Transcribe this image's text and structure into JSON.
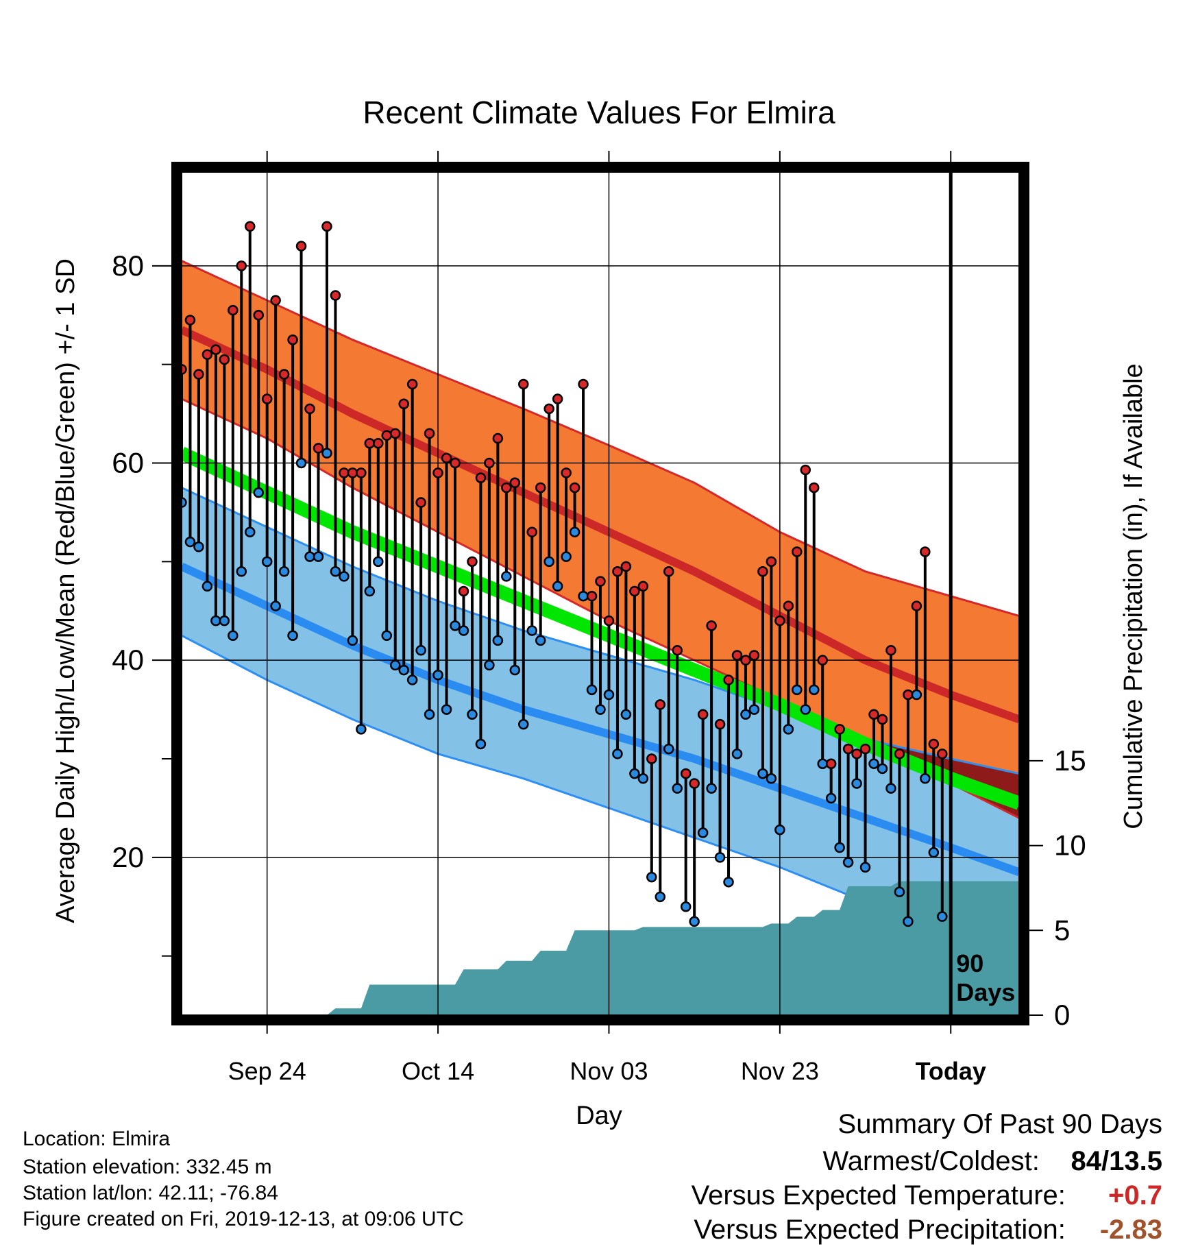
{
  "chart_data": {
    "type": "line",
    "title": "Recent Climate Values For Elmira",
    "xlabel": "Day",
    "ylabel_left": "Average Daily High/Low/Mean (Red/Blue/Green) +/- 1 SD",
    "ylabel_right": "Cumulative Precipitation (in), If Available",
    "x_range": [
      "2019-09-14",
      "2019-12-21"
    ],
    "x_ticks": [
      {
        "date": "2019-09-24",
        "label": "Sep 24"
      },
      {
        "date": "2019-10-14",
        "label": "Oct 14"
      },
      {
        "date": "2019-11-03",
        "label": "Nov 03"
      },
      {
        "date": "2019-11-23",
        "label": "Nov 23"
      },
      {
        "date": "2019-12-13",
        "label": "Today"
      }
    ],
    "y_left_range": [
      4,
      90
    ],
    "y_left_ticks": [
      20,
      40,
      60,
      80
    ],
    "y_right_range": [
      0,
      50
    ],
    "y_right_ticks": [
      0,
      5,
      10,
      15
    ],
    "grid": true,
    "today_marker": {
      "date": "2019-12-13",
      "label_line1": "90",
      "label_line2": "Days"
    },
    "normals": {
      "dates": [
        "2019-09-14",
        "2019-09-24",
        "2019-10-04",
        "2019-10-14",
        "2019-10-24",
        "2019-11-03",
        "2019-11-13",
        "2019-11-23",
        "2019-12-03",
        "2019-12-13",
        "2019-12-21"
      ],
      "high_plus_sd": [
        80.5,
        76.5,
        72.5,
        69.0,
        65.5,
        61.8,
        58.0,
        53.0,
        49.0,
        46.5,
        44.5
      ],
      "high_mean": [
        73.5,
        69.5,
        65.0,
        61.0,
        57.0,
        53.0,
        49.0,
        44.5,
        40.0,
        36.5,
        34.0
      ],
      "high_minus_sd": [
        66.5,
        62.5,
        57.5,
        53.0,
        48.5,
        44.0,
        40.0,
        36.0,
        31.5,
        27.5,
        24.0
      ],
      "mean": [
        61.0,
        57.0,
        53.0,
        49.5,
        46.0,
        42.5,
        39.0,
        35.5,
        31.5,
        28.0,
        25.5
      ],
      "low_plus_sd": [
        57.5,
        53.5,
        49.5,
        46.0,
        43.0,
        40.5,
        38.0,
        35.0,
        32.0,
        30.0,
        28.5
      ],
      "low_mean": [
        49.5,
        45.5,
        41.5,
        38.0,
        35.0,
        32.5,
        30.0,
        27.0,
        24.0,
        21.0,
        18.5
      ],
      "low_minus_sd": [
        42.5,
        38.0,
        34.0,
        30.5,
        28.0,
        25.0,
        22.0,
        19.0,
        15.5,
        12.0,
        9.0
      ]
    },
    "observed": {
      "dates": [
        "2019-09-14",
        "2019-09-15",
        "2019-09-16",
        "2019-09-17",
        "2019-09-18",
        "2019-09-19",
        "2019-09-20",
        "2019-09-21",
        "2019-09-22",
        "2019-09-23",
        "2019-09-24",
        "2019-09-25",
        "2019-09-26",
        "2019-09-27",
        "2019-09-28",
        "2019-09-29",
        "2019-09-30",
        "2019-10-01",
        "2019-10-02",
        "2019-10-03",
        "2019-10-04",
        "2019-10-05",
        "2019-10-06",
        "2019-10-07",
        "2019-10-08",
        "2019-10-09",
        "2019-10-10",
        "2019-10-11",
        "2019-10-12",
        "2019-10-13",
        "2019-10-14",
        "2019-10-15",
        "2019-10-16",
        "2019-10-17",
        "2019-10-18",
        "2019-10-19",
        "2019-10-20",
        "2019-10-21",
        "2019-10-22",
        "2019-10-23",
        "2019-10-24",
        "2019-10-25",
        "2019-10-26",
        "2019-10-27",
        "2019-10-28",
        "2019-10-29",
        "2019-10-30",
        "2019-10-31",
        "2019-11-01",
        "2019-11-02",
        "2019-11-03",
        "2019-11-04",
        "2019-11-05",
        "2019-11-06",
        "2019-11-07",
        "2019-11-08",
        "2019-11-09",
        "2019-11-10",
        "2019-11-11",
        "2019-11-12",
        "2019-11-13",
        "2019-11-14",
        "2019-11-15",
        "2019-11-16",
        "2019-11-17",
        "2019-11-18",
        "2019-11-19",
        "2019-11-20",
        "2019-11-21",
        "2019-11-22",
        "2019-11-23",
        "2019-11-24",
        "2019-11-25",
        "2019-11-26",
        "2019-11-27",
        "2019-11-28",
        "2019-11-29",
        "2019-11-30",
        "2019-12-01",
        "2019-12-02",
        "2019-12-03",
        "2019-12-04",
        "2019-12-05",
        "2019-12-06",
        "2019-12-07",
        "2019-12-08",
        "2019-12-09",
        "2019-12-10",
        "2019-12-11",
        "2019-12-12"
      ],
      "high": [
        69.5,
        74.5,
        69,
        71,
        71.5,
        70.5,
        75.5,
        80,
        84,
        75,
        66.5,
        76.5,
        69,
        72.5,
        82,
        65.5,
        61.5,
        84,
        77,
        59,
        59,
        59,
        62,
        62,
        62.8,
        63,
        66,
        68,
        56,
        63,
        59,
        60.5,
        60,
        47,
        50,
        58.5,
        60,
        62.5,
        57.5,
        58,
        68,
        53,
        57.5,
        65.5,
        66.5,
        59,
        57.5,
        68,
        46.5,
        48,
        44,
        49,
        49.5,
        47,
        47.5,
        30,
        35.5,
        49,
        41,
        28.5,
        27.5,
        34.5,
        43.5,
        33.5,
        38,
        40.5,
        40,
        40.5,
        49,
        50,
        44,
        45.5,
        51,
        59.3,
        57.5,
        40,
        29.5,
        33,
        31,
        30.5,
        31,
        34.5,
        34,
        41,
        30.5,
        36.5,
        45.5,
        51,
        31.5,
        30.5
      ],
      "low": [
        56,
        52,
        51.5,
        47.5,
        44,
        44,
        42.5,
        49,
        53,
        57,
        50,
        45.5,
        49,
        42.5,
        60,
        50.5,
        50.5,
        61,
        49,
        48.5,
        42,
        33,
        47,
        50,
        42.5,
        39.5,
        39,
        38,
        41,
        34.5,
        38.5,
        35,
        43.5,
        43,
        34.5,
        31.5,
        39.5,
        42,
        48.5,
        39,
        33.5,
        43,
        42,
        50,
        47.5,
        50.5,
        53,
        46.5,
        37,
        35,
        36.5,
        30.5,
        34.5,
        28.5,
        28,
        18,
        16,
        31,
        27,
        15,
        13.5,
        22.5,
        27,
        20,
        17.5,
        30.5,
        34.5,
        35,
        28.5,
        28,
        22.8,
        33,
        37,
        35,
        37,
        29.5,
        26,
        21,
        19.5,
        27.5,
        19,
        29.5,
        29,
        27,
        16.5,
        13.5,
        36.5,
        28,
        20.5,
        14
      ]
    },
    "cumulative_precipitation": {
      "dates": [
        "2019-09-14",
        "2019-10-01",
        "2019-10-02",
        "2019-10-05",
        "2019-10-06",
        "2019-10-16",
        "2019-10-17",
        "2019-10-21",
        "2019-10-22",
        "2019-10-25",
        "2019-10-26",
        "2019-10-29",
        "2019-10-30",
        "2019-11-03",
        "2019-11-06",
        "2019-11-07",
        "2019-11-21",
        "2019-11-22",
        "2019-11-24",
        "2019-11-25",
        "2019-11-27",
        "2019-11-28",
        "2019-11-30",
        "2019-12-01",
        "2019-12-06",
        "2019-12-07",
        "2019-12-21"
      ],
      "values": [
        0,
        0,
        0.4,
        0.4,
        1.8,
        1.8,
        2.7,
        2.7,
        3.2,
        3.2,
        3.8,
        3.8,
        5.0,
        5.0,
        5.0,
        5.2,
        5.2,
        5.4,
        5.4,
        5.8,
        5.8,
        6.2,
        6.2,
        7.6,
        7.6,
        7.9,
        7.9
      ]
    },
    "colors": {
      "high_band": "#f47a33",
      "high_band_edge": "#d4282a",
      "high_mean_line": "#cc2828",
      "mean_band": "#00e600",
      "low_band": "#83c1e7",
      "low_band_edge": "#2e8ff0",
      "low_mean_line": "#2a8cf0",
      "overlap_band": "#8f1a1a",
      "precip_fill": "#4a9ba3",
      "high_dot": "#d8282a",
      "low_dot": "#2a8ae0"
    }
  },
  "footer": {
    "location": "Location: Elmira",
    "elevation": "Station elevation: 332.45 m",
    "latlon": "Station lat/lon: 42.11; -76.84",
    "created": "Figure created on Fri, 2019-12-13, at 09:06 UTC"
  },
  "summary": {
    "title": "Summary Of Past 90 Days",
    "warmest_coldest_label": "Warmest/Coldest:",
    "warmest_coldest_value": "84/13.5",
    "temp_label": "Versus Expected Temperature:",
    "temp_value": "+0.7",
    "temp_color": "#cc2828",
    "precip_label": "Versus Expected Precipitation:",
    "precip_value": "-2.83",
    "precip_color": "#a0522d"
  }
}
